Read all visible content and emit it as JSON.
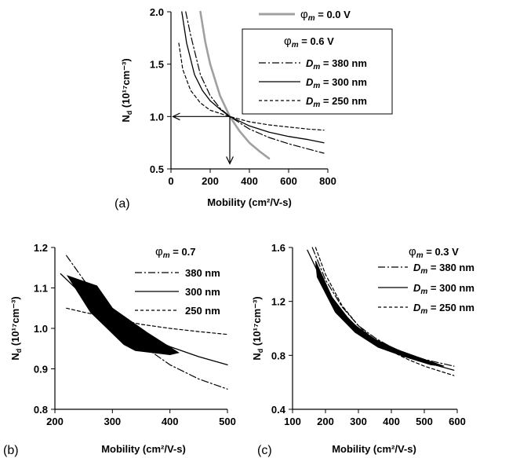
{
  "chart_data": [
    {
      "panel_label": "(a)",
      "type": "line",
      "xlabel": "Mobility (cm²/V-s)",
      "ylabel": "N",
      "ylabel_sub": "d",
      "ylabel_unit": "(10¹⁷cm⁻³)",
      "xlim": [
        0,
        800
      ],
      "ylim": [
        0.5,
        2.0
      ],
      "xticks": [
        0,
        200,
        400,
        600,
        800
      ],
      "yticks": [
        0.5,
        1.0,
        1.5,
        2.0
      ],
      "xtick_labels": [
        "0",
        "200",
        "400",
        "600",
        "800"
      ],
      "ytick_labels": [
        "0.5",
        "1.0",
        "1.5",
        "2.0"
      ],
      "legend_top": {
        "sym": "φ",
        "sub": "m",
        "text": " = 0.0 V"
      },
      "legend_box_title": {
        "sym": "φ",
        "sub": "m",
        "text": " = 0.6 V"
      },
      "series": [
        {
          "label_main": "D",
          "label_sub": "m",
          "label_text": " = 380 nm",
          "style": "dashdot",
          "x": [
            75,
            100,
            150,
            200,
            250,
            300,
            400,
            500,
            600,
            700,
            780
          ],
          "y": [
            2.0,
            1.78,
            1.4,
            1.2,
            1.08,
            1.0,
            0.88,
            0.8,
            0.74,
            0.69,
            0.65
          ]
        },
        {
          "label_main": "D",
          "label_sub": "m",
          "label_text": " = 300 nm",
          "style": "solid",
          "x": [
            55,
            80,
            120,
            160,
            200,
            250,
            300,
            400,
            500,
            600,
            700,
            780
          ],
          "y": [
            2.0,
            1.7,
            1.4,
            1.25,
            1.15,
            1.07,
            1.0,
            0.91,
            0.85,
            0.81,
            0.78,
            0.75
          ]
        },
        {
          "label_main": "D",
          "label_sub": "m",
          "label_text": " = 250 nm",
          "style": "dashed",
          "x": [
            40,
            60,
            100,
            150,
            200,
            250,
            300,
            400,
            500,
            600,
            700,
            780
          ],
          "y": [
            1.7,
            1.45,
            1.25,
            1.13,
            1.06,
            1.03,
            1.0,
            0.95,
            0.92,
            0.9,
            0.88,
            0.87
          ]
        },
        {
          "label_main": "φ",
          "label_sub": "m",
          "label_text": " = 0.0 V",
          "style": "gray",
          "x": [
            150,
            175,
            200,
            250,
            300,
            350,
            400,
            450,
            500
          ],
          "y": [
            2.0,
            1.71,
            1.5,
            1.2,
            1.0,
            0.86,
            0.75,
            0.67,
            0.6
          ]
        }
      ],
      "arrows": [
        {
          "from": [
            300,
            1.0
          ],
          "to": [
            10,
            1.0
          ]
        },
        {
          "from": [
            300,
            1.0
          ],
          "to": [
            300,
            0.55
          ]
        }
      ]
    },
    {
      "panel_label": "(b)",
      "type": "line",
      "xlabel": "Mobility (cm²/V-s)",
      "ylabel": "N",
      "ylabel_sub": "d",
      "ylabel_unit": "(10¹⁷cm⁻³)",
      "xlim": [
        200,
        500
      ],
      "ylim": [
        0.8,
        1.2
      ],
      "xticks": [
        200,
        300,
        400,
        500
      ],
      "yticks": [
        0.8,
        0.9,
        1.0,
        1.1,
        1.2
      ],
      "xtick_labels": [
        "200",
        "300",
        "400",
        "500"
      ],
      "ytick_labels": [
        "0.8",
        "0.9",
        "1.0",
        "1.1",
        "1.2"
      ],
      "legend_title": {
        "sym": "φ",
        "sub": "m",
        "text": " = 0.7"
      },
      "series": [
        {
          "label_main": "380 nm",
          "style": "dashdot",
          "x": [
            220,
            250,
            300,
            350,
            400,
            450,
            500
          ],
          "y": [
            1.18,
            1.12,
            1.03,
            0.96,
            0.91,
            0.875,
            0.85
          ]
        },
        {
          "label_main": "300 nm",
          "style": "solid",
          "x": [
            210,
            250,
            300,
            350,
            400,
            450,
            500
          ],
          "y": [
            1.135,
            1.08,
            1.02,
            0.985,
            0.955,
            0.93,
            0.91
          ]
        },
        {
          "label_main": "250 nm",
          "style": "dashed",
          "x": [
            220,
            250,
            300,
            350,
            400,
            450,
            500
          ],
          "y": [
            1.05,
            1.04,
            1.025,
            1.01,
            1.0,
            0.992,
            0.985
          ]
        }
      ],
      "region": {
        "x": [
          222,
          273,
          300,
          360,
          415,
          400,
          340,
          320,
          262,
          222
        ],
        "y": [
          1.13,
          1.105,
          1.05,
          0.99,
          0.94,
          0.935,
          0.945,
          0.96,
          1.04,
          1.13
        ]
      }
    },
    {
      "panel_label": "(c)",
      "type": "line",
      "xlabel": "Mobility (cm²/V-s)",
      "ylabel": "N",
      "ylabel_sub": "d",
      "ylabel_unit": "(10¹⁷cm⁻³)",
      "xlim": [
        100,
        600
      ],
      "ylim": [
        0.4,
        1.6
      ],
      "xticks": [
        100,
        200,
        300,
        400,
        500,
        600
      ],
      "yticks": [
        0.4,
        0.8,
        1.2,
        1.6
      ],
      "xtick_labels": [
        "100",
        "200",
        "300",
        "400",
        "500",
        "600"
      ],
      "ytick_labels": [
        "0.4",
        "0.8",
        "1.2",
        "1.6"
      ],
      "legend_title": {
        "sym": "φ",
        "sub": "m",
        "text": " = 0.3 V"
      },
      "series": [
        {
          "label_main": "D",
          "label_sub": "m",
          "label_text": " = 380 nm",
          "style": "dashdot",
          "x": [
            160,
            200,
            250,
            300,
            350,
            400,
            450,
            500,
            590
          ],
          "y": [
            1.6,
            1.36,
            1.16,
            1.02,
            0.93,
            0.86,
            0.81,
            0.77,
            0.72
          ]
        },
        {
          "label_main": "D",
          "label_sub": "m",
          "label_text": " = 300 nm",
          "style": "solid",
          "x": [
            145,
            200,
            250,
            300,
            350,
            400,
            450,
            500,
            590
          ],
          "y": [
            1.58,
            1.3,
            1.12,
            1.0,
            0.91,
            0.84,
            0.79,
            0.75,
            0.69
          ]
        },
        {
          "label_main": "D",
          "label_sub": "m",
          "label_text": " = 250 nm",
          "style": "dashed",
          "x": [
            170,
            200,
            250,
            300,
            350,
            400,
            450,
            500,
            590
          ],
          "y": [
            1.6,
            1.4,
            1.17,
            1.02,
            0.91,
            0.83,
            0.77,
            0.72,
            0.65
          ]
        }
      ],
      "region": {
        "x": [
          170,
          220,
          280,
          350,
          420,
          500,
          560,
          520,
          440,
          360,
          290,
          230,
          175,
          170
        ],
        "y": [
          1.5,
          1.23,
          1.04,
          0.92,
          0.84,
          0.77,
          0.72,
          0.73,
          0.79,
          0.86,
          0.97,
          1.12,
          1.38,
          1.5
        ]
      }
    }
  ]
}
